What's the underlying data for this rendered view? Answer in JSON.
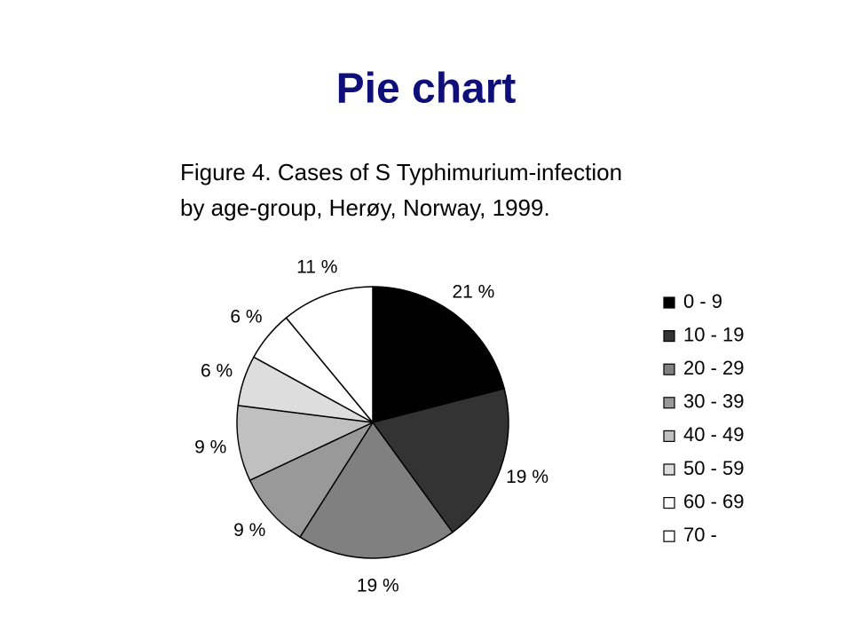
{
  "slide_title": "Pie chart",
  "chart_data": {
    "type": "pie",
    "title": [
      "Figure 4. Cases of S Typhimurium-infection",
      "by age-group, Herøy, Norway, 1999."
    ],
    "categories": [
      "0 - 9",
      "10 - 19",
      "20 - 29",
      "30 - 39",
      "40 - 49",
      "50 - 59",
      "60 - 69",
      "70 -"
    ],
    "values": [
      21,
      19,
      19,
      9,
      9,
      6,
      6,
      11
    ],
    "value_labels": [
      "21 %",
      "19 %",
      "19 %",
      "9 %",
      "9 %",
      "6 %",
      "6 %",
      "11 %"
    ],
    "colors": [
      "#000000",
      "#333333",
      "#808080",
      "#999999",
      "#c0c0c0",
      "#dddddd",
      "#ffffff",
      "#ffffff"
    ],
    "legend": "right"
  }
}
